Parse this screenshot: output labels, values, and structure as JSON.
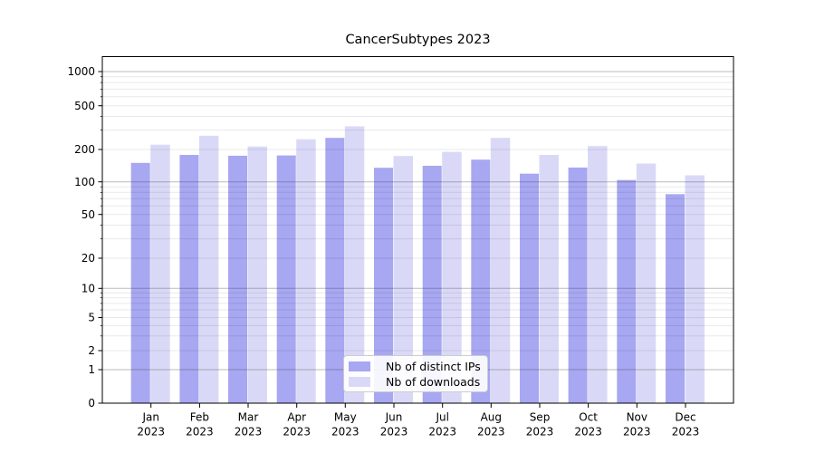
{
  "chart_data": {
    "type": "bar",
    "title": "CancerSubtypes 2023",
    "categories": [
      "Jan 2023",
      "Feb 2023",
      "Mar 2023",
      "Apr 2023",
      "May 2023",
      "Jun 2023",
      "Jul 2023",
      "Aug 2023",
      "Sep 2023",
      "Oct 2023",
      "Nov 2023",
      "Dec 2023"
    ],
    "series": [
      {
        "name": "Nb of distinct IPs",
        "color": "#a7a7f2",
        "values": [
          150,
          178,
          175,
          176,
          255,
          135,
          141,
          161,
          119,
          136,
          104,
          77
        ]
      },
      {
        "name": "Nb of downloads",
        "color": "#d9d9f7",
        "values": [
          221,
          267,
          213,
          248,
          325,
          174,
          190,
          255,
          178,
          215,
          148,
          115
        ]
      }
    ],
    "y_axis": {
      "scale": "log",
      "tick_values": [
        0,
        1,
        2,
        5,
        10,
        20,
        50,
        100,
        200,
        500,
        1000
      ],
      "tick_labels": [
        "0",
        "1",
        "2",
        "5",
        "10",
        "20",
        "50",
        "100",
        "200",
        "500",
        "1000"
      ],
      "range_top": 1430
    },
    "x_axis": {
      "label_line2": "2023"
    },
    "grid": true,
    "legend_position": "lower center",
    "colors": {
      "major_gridline": "rgba(60,60,60,0.35)",
      "minor_gridline": "rgba(0,0,0,0.09)",
      "spine": "#000000",
      "text": "#000000"
    }
  }
}
